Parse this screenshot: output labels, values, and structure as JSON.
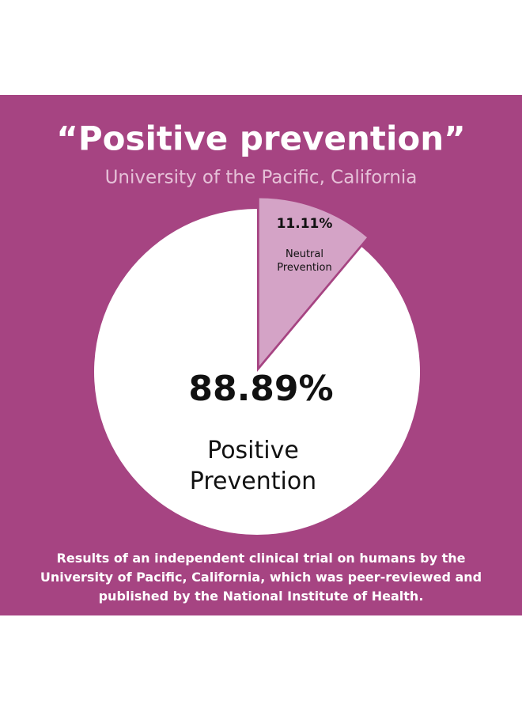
{
  "chart_data": {
    "type": "pie",
    "title": "“Positive prevention”",
    "subtitle": "University of the Pacific, California",
    "categories": [
      "Neutral Prevention",
      "Positive Prevention"
    ],
    "values": [
      11.11,
      88.89
    ],
    "value_labels": [
      "11.11%",
      "88.89%"
    ],
    "colors": [
      "#d4a3c6",
      "#ffffff"
    ],
    "footnote": "Results of an independent clinical trial on humans by the University of Pacific, California, which was peer-reviewed and published by the National Institute of Health."
  }
}
